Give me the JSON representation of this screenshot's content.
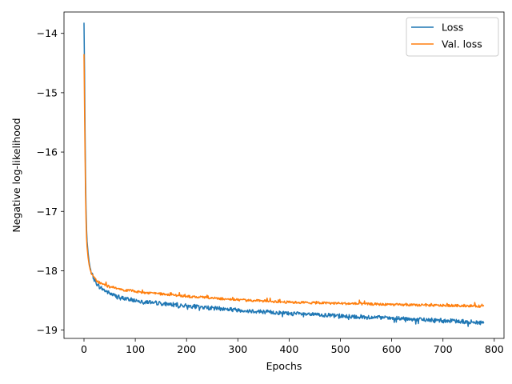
{
  "chart_data": {
    "type": "line",
    "xlabel": "Epochs",
    "ylabel": "Negative log-likelihood",
    "xlim": [
      -39,
      819
    ],
    "ylim": [
      -19.14,
      -13.64
    ],
    "xticks": [
      0,
      100,
      200,
      300,
      400,
      500,
      600,
      700,
      800
    ],
    "xtick_labels": [
      "0",
      "100",
      "200",
      "300",
      "400",
      "500",
      "600",
      "700",
      "800"
    ],
    "yticks": [
      -14,
      -15,
      -16,
      -17,
      -18,
      -19
    ],
    "ytick_labels": [
      "−14",
      "−15",
      "−16",
      "−17",
      "−18",
      "−19"
    ],
    "legend": {
      "position": "top-right"
    },
    "series": [
      {
        "name": "Loss",
        "color": "#1f77b4",
        "noise": 0.035,
        "x": [
          0,
          1,
          2,
          3,
          4,
          5,
          6,
          8,
          10,
          12,
          15,
          20,
          25,
          30,
          40,
          50,
          60,
          70,
          80,
          100,
          120,
          150,
          175,
          200,
          250,
          300,
          350,
          400,
          450,
          500,
          550,
          600,
          650,
          700,
          750,
          780
        ],
        "y": [
          -13.82,
          -14.6,
          -15.6,
          -16.4,
          -16.95,
          -17.3,
          -17.5,
          -17.7,
          -17.85,
          -17.95,
          -18.05,
          -18.15,
          -18.22,
          -18.27,
          -18.33,
          -18.38,
          -18.42,
          -18.45,
          -18.47,
          -18.5,
          -18.52,
          -18.55,
          -18.57,
          -18.59,
          -18.63,
          -18.66,
          -18.69,
          -18.72,
          -18.74,
          -18.76,
          -18.78,
          -18.8,
          -18.82,
          -18.84,
          -18.86,
          -18.88
        ]
      },
      {
        "name": "Val. loss",
        "color": "#ff7f0e",
        "noise": 0.02,
        "x": [
          0,
          1,
          2,
          3,
          4,
          5,
          6,
          8,
          10,
          12,
          15,
          20,
          25,
          30,
          40,
          50,
          60,
          70,
          80,
          100,
          120,
          150,
          175,
          200,
          250,
          300,
          350,
          400,
          450,
          500,
          550,
          600,
          650,
          700,
          750,
          780
        ],
        "y": [
          -14.35,
          -15.2,
          -16.0,
          -16.7,
          -17.15,
          -17.45,
          -17.6,
          -17.78,
          -17.9,
          -17.98,
          -18.05,
          -18.12,
          -18.17,
          -18.2,
          -18.24,
          -18.27,
          -18.29,
          -18.31,
          -18.33,
          -18.35,
          -18.37,
          -18.39,
          -18.41,
          -18.43,
          -18.46,
          -18.49,
          -18.51,
          -18.53,
          -18.54,
          -18.55,
          -18.56,
          -18.57,
          -18.58,
          -18.585,
          -18.59,
          -18.6
        ]
      }
    ]
  }
}
